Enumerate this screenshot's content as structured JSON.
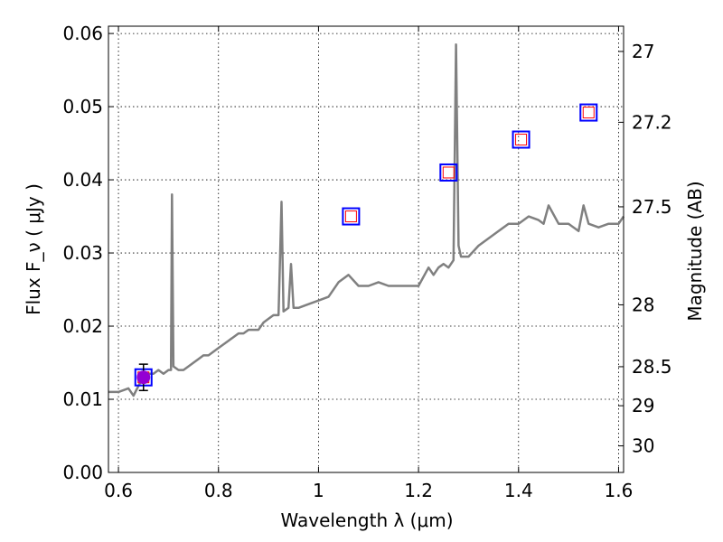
{
  "chart_data": {
    "type": "line",
    "xlabel": "Wavelength  λ (μm)",
    "ylabel": "Flux  F_ν  ( μJy )",
    "y2label": "Magnitude (AB)",
    "xlim": [
      0.58,
      1.61
    ],
    "ylim": [
      0.0,
      0.061
    ],
    "grid": true,
    "x_ticks": [
      0.6,
      0.8,
      1.0,
      1.2,
      1.4,
      1.6
    ],
    "x_tick_labels": [
      "0.6",
      "0.8",
      "1",
      "1.2",
      "1.4",
      "1.6"
    ],
    "y_ticks": [
      0.0,
      0.01,
      0.02,
      0.03,
      0.04,
      0.05,
      0.06
    ],
    "y_tick_labels": [
      "0.00",
      "0.01",
      "0.02",
      "0.03",
      "0.04",
      "0.05",
      "0.06"
    ],
    "y2_ticks": [
      {
        "mag": 27,
        "label": "27"
      },
      {
        "mag": 27.2,
        "label": "27.2"
      },
      {
        "mag": 27.5,
        "label": "27.5"
      },
      {
        "mag": 28,
        "label": "28"
      },
      {
        "mag": 28.5,
        "label": "28.5"
      },
      {
        "mag": 29,
        "label": "29"
      },
      {
        "mag": 30,
        "label": "30"
      }
    ],
    "colors": {
      "spectrum": "#808080",
      "model_box": "#0000ff",
      "model_inner": "#ff0000",
      "observed_point": "#9400d3",
      "errorbar": "#000000"
    },
    "spectrum": {
      "x": [
        0.58,
        0.6,
        0.62,
        0.63,
        0.645,
        0.65,
        0.66,
        0.67,
        0.68,
        0.69,
        0.7,
        0.705,
        0.707,
        0.71,
        0.72,
        0.73,
        0.74,
        0.75,
        0.76,
        0.77,
        0.78,
        0.8,
        0.82,
        0.83,
        0.84,
        0.85,
        0.86,
        0.87,
        0.88,
        0.89,
        0.9,
        0.91,
        0.92,
        0.926,
        0.93,
        0.94,
        0.945,
        0.95,
        0.96,
        0.98,
        1.0,
        1.02,
        1.04,
        1.06,
        1.08,
        1.1,
        1.12,
        1.14,
        1.16,
        1.18,
        1.2,
        1.22,
        1.23,
        1.24,
        1.25,
        1.26,
        1.27,
        1.275,
        1.28,
        1.285,
        1.29,
        1.3,
        1.32,
        1.34,
        1.36,
        1.38,
        1.4,
        1.42,
        1.44,
        1.45,
        1.46,
        1.48,
        1.5,
        1.52,
        1.53,
        1.54,
        1.56,
        1.58,
        1.6,
        1.61
      ],
      "y": [
        0.011,
        0.011,
        0.0115,
        0.0105,
        0.0125,
        0.013,
        0.0135,
        0.0135,
        0.014,
        0.0135,
        0.014,
        0.014,
        0.038,
        0.0145,
        0.014,
        0.014,
        0.0145,
        0.015,
        0.0155,
        0.016,
        0.016,
        0.017,
        0.018,
        0.0185,
        0.019,
        0.019,
        0.0195,
        0.0195,
        0.0195,
        0.0205,
        0.021,
        0.0215,
        0.0215,
        0.037,
        0.022,
        0.0225,
        0.0285,
        0.0225,
        0.0225,
        0.023,
        0.0235,
        0.024,
        0.026,
        0.027,
        0.0255,
        0.0255,
        0.026,
        0.0255,
        0.0255,
        0.0255,
        0.0255,
        0.028,
        0.027,
        0.028,
        0.0285,
        0.028,
        0.029,
        0.0585,
        0.031,
        0.0295,
        0.0295,
        0.0295,
        0.031,
        0.032,
        0.033,
        0.034,
        0.034,
        0.035,
        0.0345,
        0.034,
        0.0365,
        0.034,
        0.034,
        0.033,
        0.0365,
        0.034,
        0.0335,
        0.034,
        0.034,
        0.035
      ]
    },
    "model_points": {
      "x": [
        0.65,
        1.065,
        1.26,
        1.405,
        1.54
      ],
      "y": [
        0.013,
        0.035,
        0.041,
        0.0455,
        0.0492
      ]
    },
    "observed_points": {
      "x": [
        0.65
      ],
      "y": [
        0.013
      ],
      "yerr": [
        0.0018
      ]
    }
  }
}
